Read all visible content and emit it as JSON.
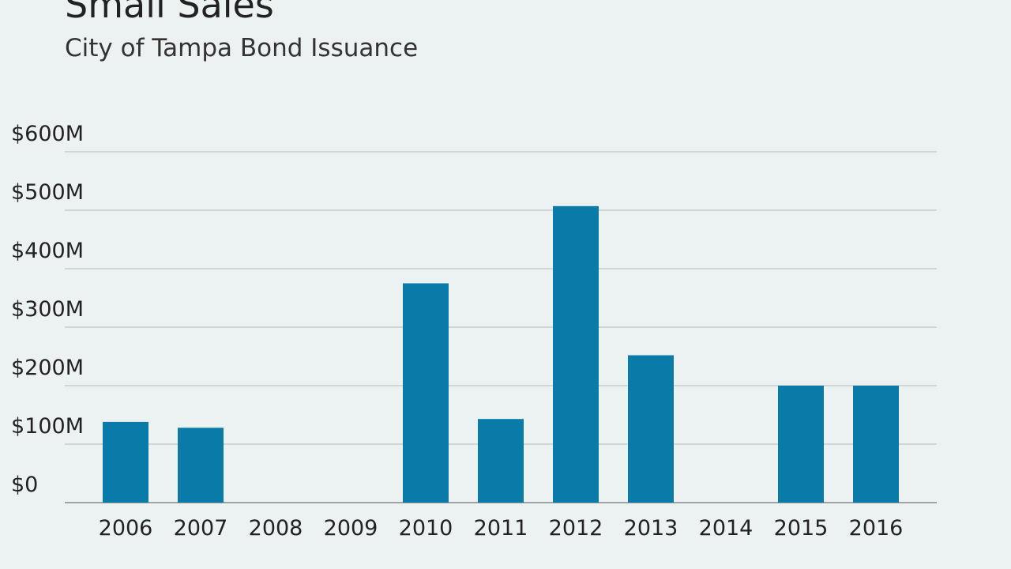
{
  "header": {
    "title": "Small Sales",
    "subtitle": "City of Tampa Bond Issuance"
  },
  "chart_data": {
    "type": "bar",
    "title": "Small Sales",
    "subtitle": "City of Tampa Bond Issuance",
    "xlabel": "",
    "ylabel": "",
    "categories": [
      "2006",
      "2007",
      "2008",
      "2009",
      "2010",
      "2011",
      "2012",
      "2013",
      "2014",
      "2015",
      "2016"
    ],
    "values": [
      138,
      128,
      0,
      0,
      375,
      143,
      507,
      252,
      0,
      200,
      200
    ],
    "value_unit": "$M",
    "ylim": [
      0,
      600
    ],
    "yticks": [
      0,
      100,
      200,
      300,
      400,
      500,
      600
    ],
    "ytick_labels": [
      "$0",
      "$100M",
      "$200M",
      "$300M",
      "$400M",
      "$500M",
      "$600M"
    ],
    "grid": true,
    "bar_color": "#0a7aa9"
  }
}
